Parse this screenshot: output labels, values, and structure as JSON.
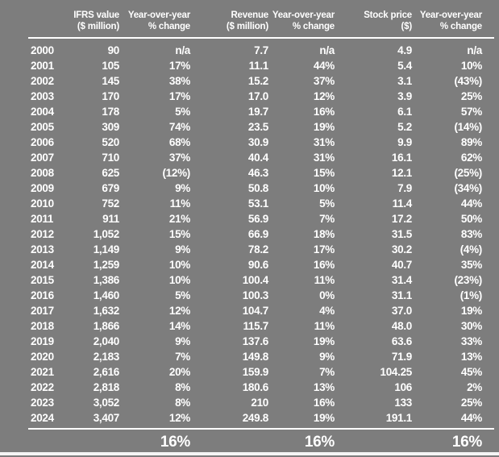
{
  "colors": {
    "background": "#7d7d7d",
    "text": "#ffffff",
    "rule": "#ffffff",
    "bottom_strip": "#f5f5f5"
  },
  "chart_data": {
    "type": "table",
    "columns": [
      {
        "label": "",
        "sublabel": ""
      },
      {
        "label": "IFRS value",
        "sublabel": "($ million)"
      },
      {
        "label": "Year-over-year",
        "sublabel": "% change"
      },
      {
        "label": "Revenue",
        "sublabel": "($ million)"
      },
      {
        "label": "Year-over-year",
        "sublabel": "% change"
      },
      {
        "label": "Stock price",
        "sublabel": "($)"
      },
      {
        "label": "Year-over-year",
        "sublabel": "% change"
      }
    ],
    "rows": [
      [
        "2000",
        "90",
        "n/a",
        "7.7",
        "n/a",
        "4.9",
        "n/a"
      ],
      [
        "2001",
        "105",
        "17%",
        "11.1",
        "44%",
        "5.4",
        "10%"
      ],
      [
        "2002",
        "145",
        "38%",
        "15.2",
        "37%",
        "3.1",
        "(43%)"
      ],
      [
        "2003",
        "170",
        "17%",
        "17.0",
        "12%",
        "3.9",
        "25%"
      ],
      [
        "2004",
        "178",
        "5%",
        "19.7",
        "16%",
        "6.1",
        "57%"
      ],
      [
        "2005",
        "309",
        "74%",
        "23.5",
        "19%",
        "5.2",
        "(14%)"
      ],
      [
        "2006",
        "520",
        "68%",
        "30.9",
        "31%",
        "9.9",
        "89%"
      ],
      [
        "2007",
        "710",
        "37%",
        "40.4",
        "31%",
        "16.1",
        "62%"
      ],
      [
        "2008",
        "625",
        "(12%)",
        "46.3",
        "15%",
        "12.1",
        "(25%)"
      ],
      [
        "2009",
        "679",
        "9%",
        "50.8",
        "10%",
        "7.9",
        "(34%)"
      ],
      [
        "2010",
        "752",
        "11%",
        "53.1",
        "5%",
        "11.4",
        "44%"
      ],
      [
        "2011",
        "911",
        "21%",
        "56.9",
        "7%",
        "17.2",
        "50%"
      ],
      [
        "2012",
        "1,052",
        "15%",
        "66.9",
        "18%",
        "31.5",
        "83%"
      ],
      [
        "2013",
        "1,149",
        "9%",
        "78.2",
        "17%",
        "30.2",
        "(4%)"
      ],
      [
        "2014",
        "1,259",
        "10%",
        "90.6",
        "16%",
        "40.7",
        "35%"
      ],
      [
        "2015",
        "1,386",
        "10%",
        "100.4",
        "11%",
        "31.4",
        "(23%)"
      ],
      [
        "2016",
        "1,460",
        "5%",
        "100.3",
        "0%",
        "31.1",
        "(1%)"
      ],
      [
        "2017",
        "1,632",
        "12%",
        "104.7",
        "4%",
        "37.0",
        "19%"
      ],
      [
        "2018",
        "1,866",
        "14%",
        "115.7",
        "11%",
        "48.0",
        "30%"
      ],
      [
        "2019",
        "2,040",
        "9%",
        "137.6",
        "19%",
        "63.6",
        "33%"
      ],
      [
        "2020",
        "2,183",
        "7%",
        "149.8",
        "9%",
        "71.9",
        "13%"
      ],
      [
        "2021",
        "2,616",
        "20%",
        "159.9",
        "7%",
        "104.25",
        "45%"
      ],
      [
        "2022",
        "2,818",
        "8%",
        "180.6",
        "13%",
        "106",
        "2%"
      ],
      [
        "2023",
        "3,052",
        "8%",
        "210",
        "16%",
        "133",
        "25%"
      ],
      [
        "2024",
        "3,407",
        "12%",
        "249.8",
        "19%",
        "191.1",
        "44%"
      ]
    ],
    "totals_row": [
      "",
      "",
      "16%",
      "",
      "16%",
      "",
      "16%"
    ],
    "layout": {
      "grid": "off",
      "alignment": "numeric columns right-aligned, year column left-aligned",
      "rules": [
        "below header",
        "above totals row"
      ]
    }
  }
}
